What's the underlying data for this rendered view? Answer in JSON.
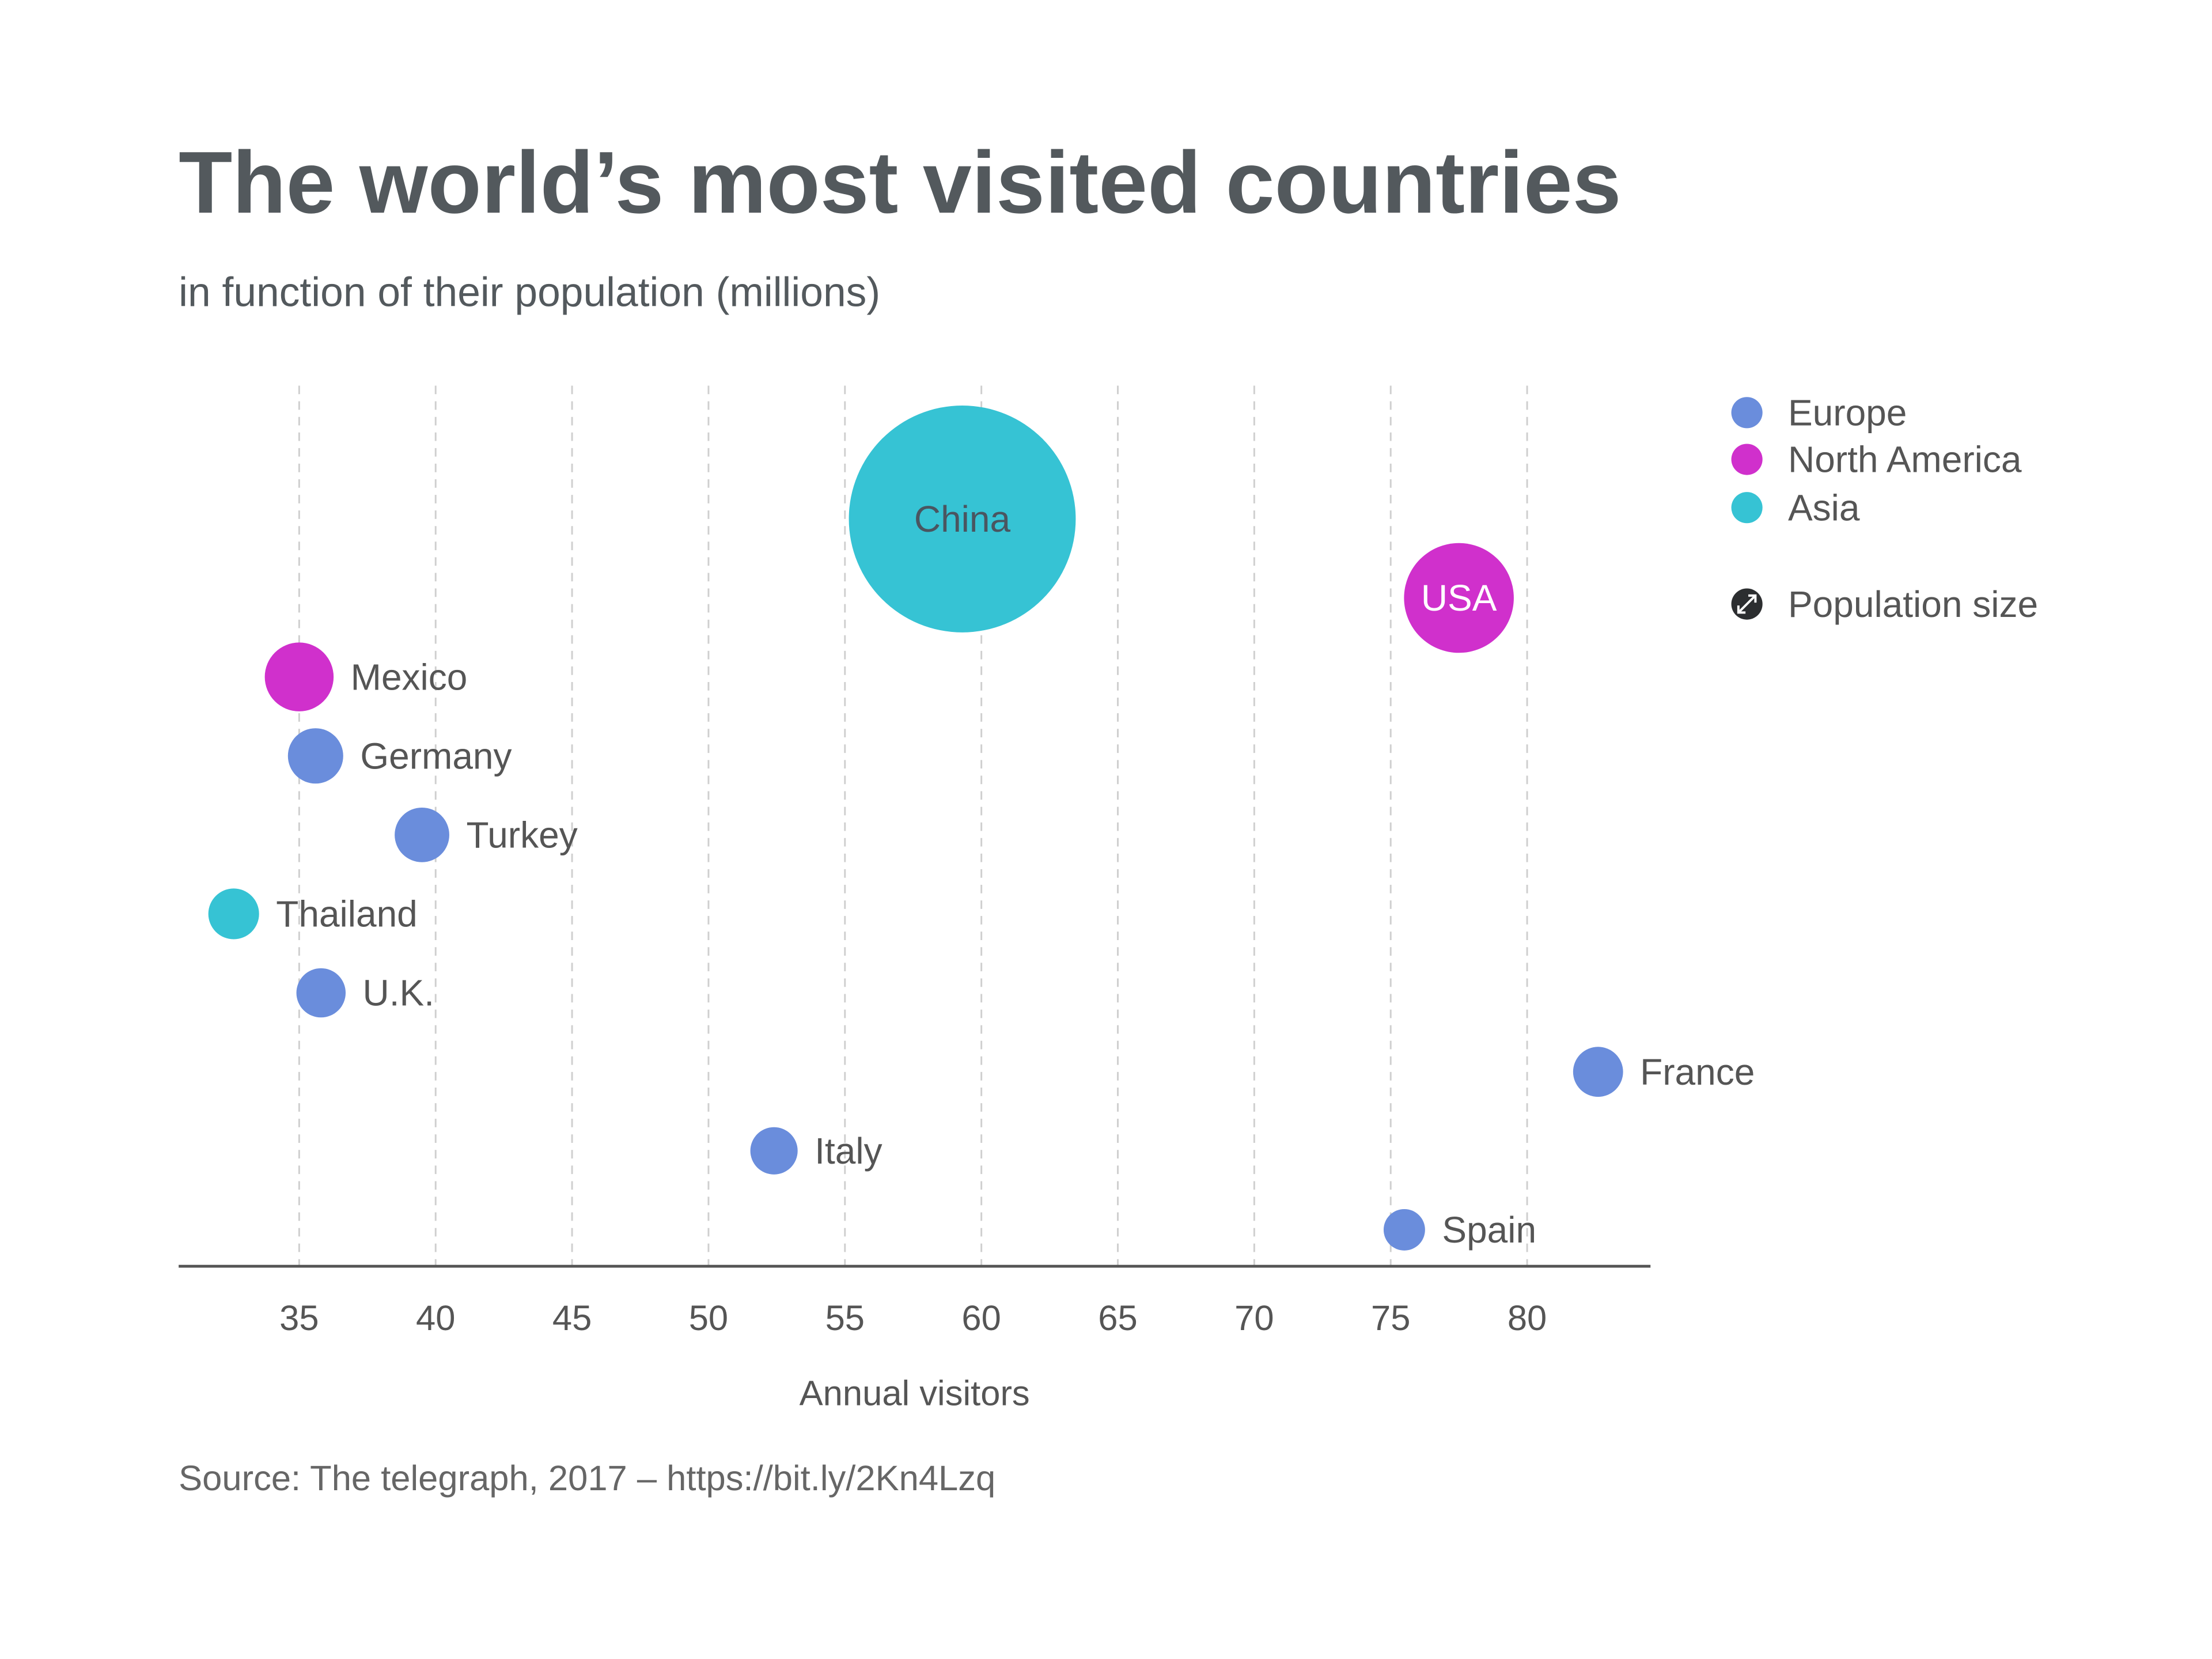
{
  "chart_data": {
    "type": "scatter",
    "subtype": "bubble",
    "title": "The world’s most visited countries",
    "subtitle": "in function of their population (millions)",
    "xlabel": "Annual visitors",
    "ylabel": "",
    "xlim": [
      30.6,
      84.5
    ],
    "xticks": [
      35,
      40,
      45,
      50,
      55,
      60,
      65,
      70,
      75,
      80
    ],
    "grid": {
      "x": true,
      "y": false
    },
    "legend_placement": "right",
    "colors": {
      "Europe": "#6a8ddc",
      "North America": "#d030cc",
      "Asia": "#36c3d4"
    },
    "legend": [
      {
        "label": "Europe",
        "group": "Europe"
      },
      {
        "label": "North America",
        "group": "North America"
      },
      {
        "label": "Asia",
        "group": "Asia"
      }
    ],
    "size_legend": {
      "label": "Population size",
      "icon": "resize-arrows-icon"
    },
    "points": [
      {
        "label": "China",
        "group": "Asia",
        "x": 59.3,
        "population": 1380,
        "label_inside": true
      },
      {
        "label": "USA",
        "group": "North America",
        "x": 77.5,
        "population": 323,
        "label_inside": true
      },
      {
        "label": "Mexico",
        "group": "North America",
        "x": 35.0,
        "population": 127
      },
      {
        "label": "Germany",
        "group": "Europe",
        "x": 35.6,
        "population": 82
      },
      {
        "label": "Turkey",
        "group": "Europe",
        "x": 39.5,
        "population": 80
      },
      {
        "label": "Thailand",
        "group": "Asia",
        "x": 32.6,
        "population": 69
      },
      {
        "label": "U.K.",
        "group": "Europe",
        "x": 35.8,
        "population": 65
      },
      {
        "label": "France",
        "group": "Europe",
        "x": 82.6,
        "population": 67
      },
      {
        "label": "Italy",
        "group": "Europe",
        "x": 52.4,
        "population": 60
      },
      {
        "label": "Spain",
        "group": "Europe",
        "x": 75.5,
        "population": 46
      }
    ],
    "source": "Source: The telegraph, 2017 – https://bit.ly/2Kn4Lzq"
  }
}
